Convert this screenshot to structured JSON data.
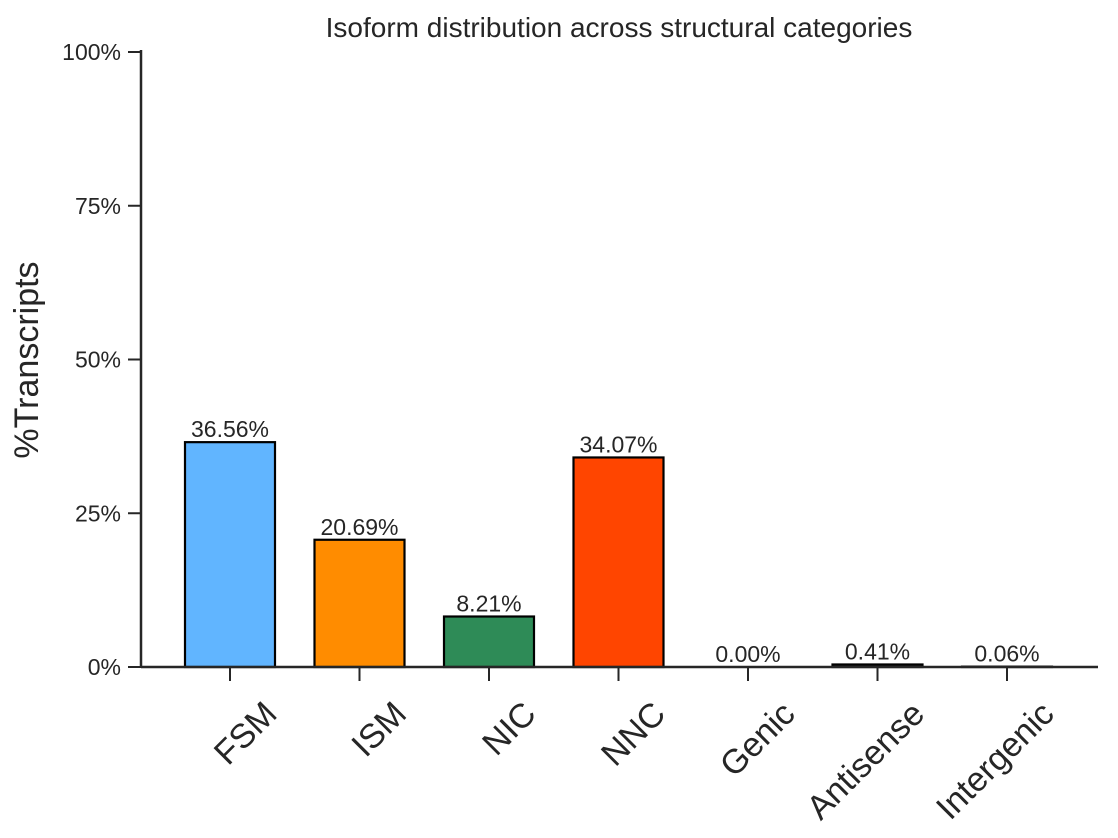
{
  "chart_data": {
    "type": "bar",
    "title": "Isoform distribution across structural categories",
    "xlabel": "",
    "ylabel": "%Transcripts",
    "ylim": [
      0,
      100
    ],
    "yticks": [
      0,
      25,
      50,
      75,
      100
    ],
    "ytick_labels": [
      "0%",
      "25%",
      "50%",
      "75%",
      "100%"
    ],
    "categories": [
      "FSM",
      "ISM",
      "NIC",
      "NNC",
      "Genic",
      "Antisense",
      "Intergenic"
    ],
    "values": [
      36.56,
      20.69,
      8.21,
      34.07,
      0.0,
      0.41,
      0.06
    ],
    "data_labels": [
      "36.56%",
      "20.69%",
      "8.21%",
      "34.07%",
      "0.00%",
      "0.41%",
      "0.06%"
    ],
    "colors": [
      "#61b5ff",
      "#ff8c00",
      "#2e8b57",
      "#ff4500",
      "#5d6d7e",
      "#303030",
      "#808080"
    ],
    "grid": false,
    "legend": "none"
  }
}
